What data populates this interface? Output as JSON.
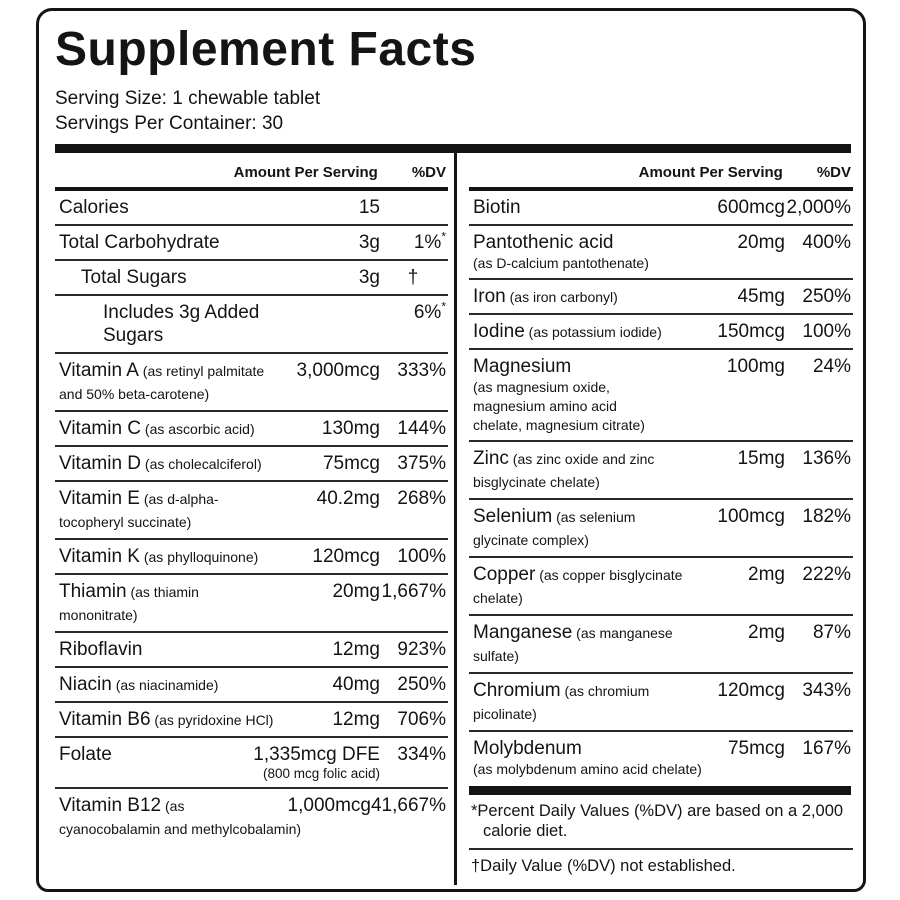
{
  "title": "Supplement Facts",
  "serving": {
    "size": "Serving Size: 1 chewable tablet",
    "per_container": "Servings Per Container: 30"
  },
  "headers": {
    "amount": "Amount Per Serving",
    "dv": "%DV"
  },
  "left_rows": [
    {
      "name": "Calories",
      "amount": "15",
      "dv": ""
    },
    {
      "name": "Total Carbohydrate",
      "amount": "3g",
      "dv": "1%",
      "dv_mark": "*"
    },
    {
      "name": "Total Sugars",
      "amount": "3g",
      "dv": "†",
      "indent": 1
    },
    {
      "name": "Includes 3g Added Sugars",
      "amount": "",
      "dv": "6%",
      "dv_mark": "*",
      "indent": 2
    },
    {
      "name": "Vitamin A",
      "detail": "(as retinyl palmitate and 50% beta-carotene)",
      "amount": "3,000mcg",
      "dv": "333%"
    },
    {
      "name": "Vitamin C",
      "detail": "(as ascorbic acid)",
      "amount": "130mg",
      "dv": "144%"
    },
    {
      "name": "Vitamin D",
      "detail": "(as cholecalciferol)",
      "amount": "75mcg",
      "dv": "375%"
    },
    {
      "name": "Vitamin E",
      "detail": "(as d-alpha-tocopheryl succinate)",
      "amount": "40.2mg",
      "dv": "268%"
    },
    {
      "name": "Vitamin K",
      "detail": "(as phylloquinone)",
      "amount": "120mcg",
      "dv": "100%"
    },
    {
      "name": "Thiamin",
      "detail": "(as thiamin mononitrate)",
      "amount": "20mg",
      "dv": "1,667%"
    },
    {
      "name": "Riboflavin",
      "amount": "12mg",
      "dv": "923%"
    },
    {
      "name": "Niacin",
      "detail": "(as niacinamide)",
      "amount": "40mg",
      "dv": "250%"
    },
    {
      "name": "Vitamin B6",
      "detail": "(as pyridoxine HCl)",
      "amount": "12mg",
      "dv": "706%"
    },
    {
      "name": "Folate",
      "amount": "1,335mcg DFE",
      "amount_sub": "(800 mcg folic acid)",
      "dv": "334%"
    },
    {
      "name": "Vitamin B12",
      "detail": "(as cyanocobalamin and methylcobalamin)",
      "amount": "1,000mcg",
      "dv": "41,667%"
    }
  ],
  "right_rows": [
    {
      "name": "Biotin",
      "amount": "600mcg",
      "dv": "2,000%"
    },
    {
      "name": "Pantothenic acid",
      "detail": "(as D-calcium pantothenate)",
      "detail_block": true,
      "amount": "20mg",
      "dv": "400%"
    },
    {
      "name": "Iron",
      "detail": "(as iron carbonyl)",
      "amount": "45mg",
      "dv": "250%"
    },
    {
      "name": "Iodine",
      "detail": "(as potassium iodide)",
      "amount": "150mcg",
      "dv": "100%"
    },
    {
      "name": "Magnesium",
      "detail": "(as magnesium oxide, magnesium amino acid chelate, magnesium citrate)",
      "detail_block": true,
      "detail_narrow": true,
      "amount": "100mg",
      "dv": "24%"
    },
    {
      "name": "Zinc",
      "detail": "(as zinc oxide and zinc bisglycinate chelate)",
      "amount": "15mg",
      "dv": "136%"
    },
    {
      "name": "Selenium",
      "detail": "(as selenium glycinate complex)",
      "amount": "100mcg",
      "dv": "182%"
    },
    {
      "name": "Copper",
      "detail": "(as copper bisglycinate chelate)",
      "amount": "2mg",
      "dv": "222%"
    },
    {
      "name": "Manganese",
      "detail": "(as manganese sulfate)",
      "amount": "2mg",
      "dv": "87%"
    },
    {
      "name": "Chromium",
      "detail": "(as chromium picolinate)",
      "amount": "120mcg",
      "dv": "343%"
    },
    {
      "name": "Molybdenum",
      "detail": "(as molybdenum amino acid chelate)",
      "detail_block": true,
      "amount": "75mcg",
      "dv": "167%"
    }
  ],
  "footnotes": [
    "*Percent Daily Values (%DV) are based on a 2,000 calorie diet.",
    "†Daily Value (%DV) not established."
  ],
  "colors": {
    "ink": "#141414",
    "rule": "#2a2a2a",
    "background": "#ffffff"
  }
}
